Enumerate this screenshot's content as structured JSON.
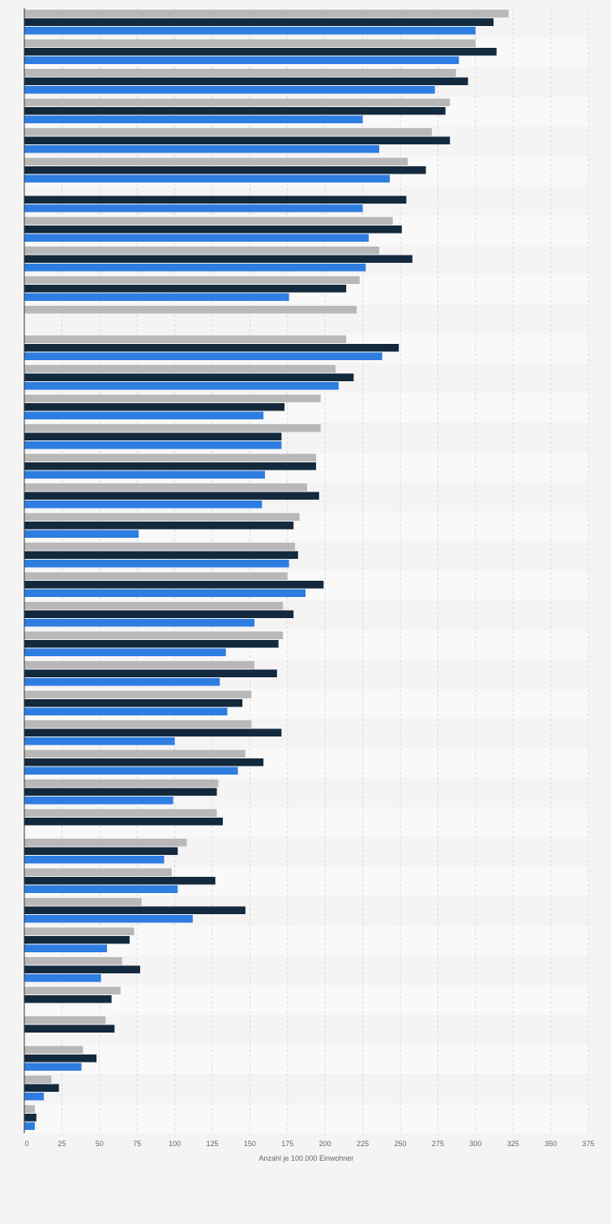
{
  "chart_data": {
    "type": "bar",
    "orientation": "horizontal",
    "xlabel": "Anzahl je 100.000 Einwohner",
    "xlim": [
      0,
      375
    ],
    "xticks": [
      0,
      25,
      50,
      75,
      100,
      125,
      150,
      175,
      200,
      225,
      250,
      275,
      300,
      325,
      350,
      375
    ],
    "grid": true,
    "colors": {
      "series_1": "#b8b8b8",
      "series_2": "#13293d",
      "series_3": "#2e7de1",
      "band_dark": "#f4f4f5",
      "band_light": "#f9f9f9",
      "grid": "#d8d8d8",
      "axis": "#333333"
    },
    "series": [
      {
        "values": [
          322,
          300,
          287,
          283,
          271,
          255,
          null,
          245,
          236,
          223,
          221,
          214,
          207,
          197,
          197,
          194,
          188,
          183,
          180,
          175,
          172,
          172,
          153,
          151,
          151,
          147,
          129,
          128,
          108,
          98,
          78,
          73,
          65,
          64,
          54,
          39,
          18,
          7
        ]
      },
      {
        "values": [
          312,
          314,
          295,
          280,
          283,
          267,
          254,
          251,
          258,
          214,
          null,
          249,
          219,
          173,
          171,
          194,
          196,
          179,
          182,
          199,
          179,
          169,
          168,
          145,
          171,
          159,
          128,
          132,
          102,
          127,
          147,
          70,
          77,
          58,
          60,
          48,
          23,
          8
        ]
      },
      {
        "values": [
          300,
          289,
          273,
          225,
          236,
          243,
          225,
          229,
          227,
          176,
          null,
          238,
          209,
          159,
          171,
          160,
          158,
          76,
          176,
          187,
          153,
          134,
          130,
          135,
          100,
          142,
          99,
          null,
          93,
          102,
          112,
          55,
          51,
          null,
          null,
          38,
          13,
          7
        ]
      }
    ]
  }
}
